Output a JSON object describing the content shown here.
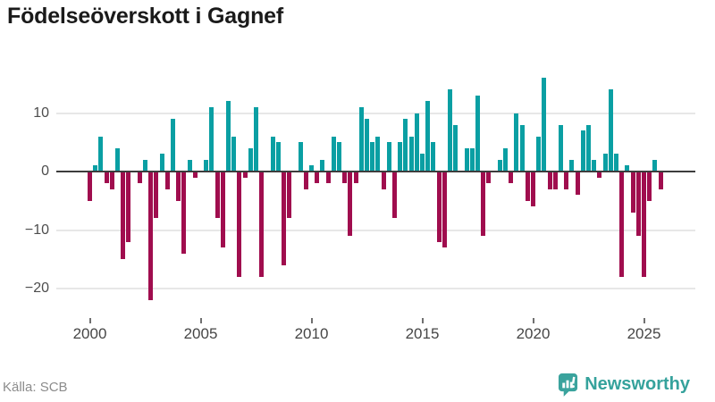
{
  "title": "Födelseöverskott i Gagnef",
  "footer": {
    "source": "Källa: SCB",
    "brand": "Newsworthy"
  },
  "colors": {
    "positive": "#0a9fa3",
    "negative": "#a00d4e",
    "axis": "#3d3d3d",
    "grid": "#e7e7e7",
    "logo": "#3aa39d",
    "title_text": "#1a1a1a",
    "tick_text": "#4d4d4d"
  },
  "chart_data": {
    "type": "bar",
    "title": "Födelseöverskott i Gagnef",
    "x_unit": "quarter",
    "start": "2000 Q1",
    "end": "2025 Q4",
    "grid": "horizontal",
    "legend": "none",
    "ylim": [
      -23,
      17
    ],
    "y_ticks": [
      10,
      0,
      -10,
      -20
    ],
    "x_ticks": [
      2000,
      2005,
      2010,
      2015,
      2020,
      2025
    ],
    "years": [
      {
        "year": 2000,
        "q": [
          -5,
          1,
          6,
          -2
        ]
      },
      {
        "year": 2001,
        "q": [
          -3,
          4,
          -15,
          -12
        ]
      },
      {
        "year": 2002,
        "q": [
          0,
          -2,
          2,
          -22
        ]
      },
      {
        "year": 2003,
        "q": [
          -8,
          3,
          -3,
          9
        ]
      },
      {
        "year": 2004,
        "q": [
          -5,
          -14,
          2,
          -1
        ]
      },
      {
        "year": 2005,
        "q": [
          0,
          2,
          11,
          -8
        ]
      },
      {
        "year": 2006,
        "q": [
          -13,
          12,
          6,
          -18
        ]
      },
      {
        "year": 2007,
        "q": [
          -1,
          4,
          11,
          -18
        ]
      },
      {
        "year": 2008,
        "q": [
          0,
          6,
          5,
          -16
        ]
      },
      {
        "year": 2009,
        "q": [
          -8,
          0,
          5,
          -3
        ]
      },
      {
        "year": 2010,
        "q": [
          1,
          -2,
          2,
          -2
        ]
      },
      {
        "year": 2011,
        "q": [
          6,
          5,
          -2,
          -11
        ]
      },
      {
        "year": 2012,
        "q": [
          -2,
          11,
          9,
          5
        ]
      },
      {
        "year": 2013,
        "q": [
          6,
          -3,
          5,
          -8
        ]
      },
      {
        "year": 2014,
        "q": [
          5,
          9,
          6,
          10
        ]
      },
      {
        "year": 2015,
        "q": [
          3,
          12,
          5,
          -12
        ]
      },
      {
        "year": 2016,
        "q": [
          -13,
          14,
          8,
          0
        ]
      },
      {
        "year": 2017,
        "q": [
          4,
          4,
          13,
          -11
        ]
      },
      {
        "year": 2018,
        "q": [
          -2,
          0,
          2,
          4
        ]
      },
      {
        "year": 2019,
        "q": [
          -2,
          10,
          8,
          -5
        ]
      },
      {
        "year": 2020,
        "q": [
          -6,
          6,
          16,
          -3
        ]
      },
      {
        "year": 2021,
        "q": [
          -3,
          8,
          -3,
          2
        ]
      },
      {
        "year": 2022,
        "q": [
          -4,
          7,
          8,
          2
        ]
      },
      {
        "year": 2023,
        "q": [
          -1,
          3,
          14,
          3
        ]
      },
      {
        "year": 2024,
        "q": [
          -18,
          1,
          -7,
          -11
        ]
      },
      {
        "year": 2025,
        "q": [
          -18,
          -5,
          2,
          -3
        ]
      }
    ]
  }
}
